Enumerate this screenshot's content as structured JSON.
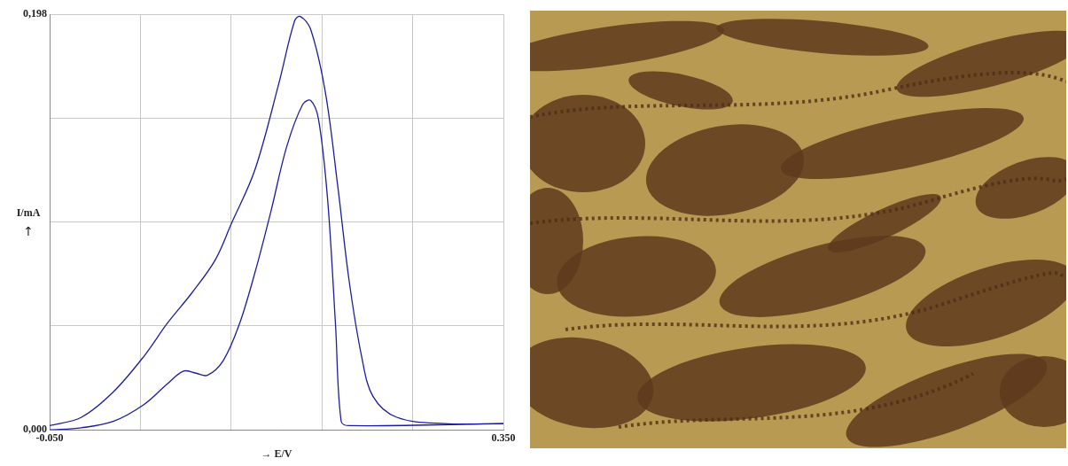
{
  "chart_data": {
    "type": "line",
    "xlabel": "→ E/V",
    "ylabel": "I/mA",
    "ylabel_arrow": "↑",
    "xlim": [
      -0.05,
      0.35
    ],
    "xticks": [
      {
        "value": -0.05,
        "label": "-0.050"
      },
      {
        "value": 0.03,
        "label": null
      },
      {
        "value": 0.11,
        "label": null
      },
      {
        "value": 0.19,
        "label": null
      },
      {
        "value": 0.27,
        "label": null
      },
      {
        "value": 0.35,
        "label": "0.350"
      }
    ],
    "ylim": [
      0,
      0.198
    ],
    "yticks": [
      {
        "value": 0,
        "label": "0,000"
      },
      {
        "value": 0.0495,
        "label": null
      },
      {
        "value": 0.099,
        "label": null
      },
      {
        "value": 0.1485,
        "label": null
      },
      {
        "value": 0.198,
        "label": "0,198"
      }
    ],
    "grid": true,
    "series": [
      {
        "color": "#1c1ca0",
        "x": [
          -0.05,
          -0.022,
          0.006,
          0.033,
          0.054,
          0.075,
          0.096,
          0.11,
          0.131,
          0.152,
          0.166,
          0.171,
          0.18,
          0.193,
          0.204,
          0.214,
          0.225,
          0.235,
          0.256,
          0.298,
          0.35
        ],
        "values": [
          0.002,
          0.006,
          0.018,
          0.035,
          0.051,
          0.065,
          0.081,
          0.098,
          0.124,
          0.165,
          0.195,
          0.197,
          0.191,
          0.161,
          0.116,
          0.071,
          0.035,
          0.016,
          0.006,
          0.003,
          0.003
        ]
      },
      {
        "color": "#1c1ca0",
        "x": [
          -0.05,
          -0.022,
          0.006,
          0.033,
          0.054,
          0.068,
          0.079,
          0.089,
          0.103,
          0.117,
          0.131,
          0.145,
          0.159,
          0.173,
          0.18,
          0.187,
          0.195,
          0.202,
          0.207,
          0.214,
          0.35
        ],
        "values": [
          0.0,
          0.001,
          0.004,
          0.012,
          0.022,
          0.028,
          0.027,
          0.026,
          0.033,
          0.05,
          0.075,
          0.104,
          0.135,
          0.155,
          0.157,
          0.148,
          0.11,
          0.05,
          0.004,
          0.002,
          0.003
        ]
      }
    ]
  }
}
